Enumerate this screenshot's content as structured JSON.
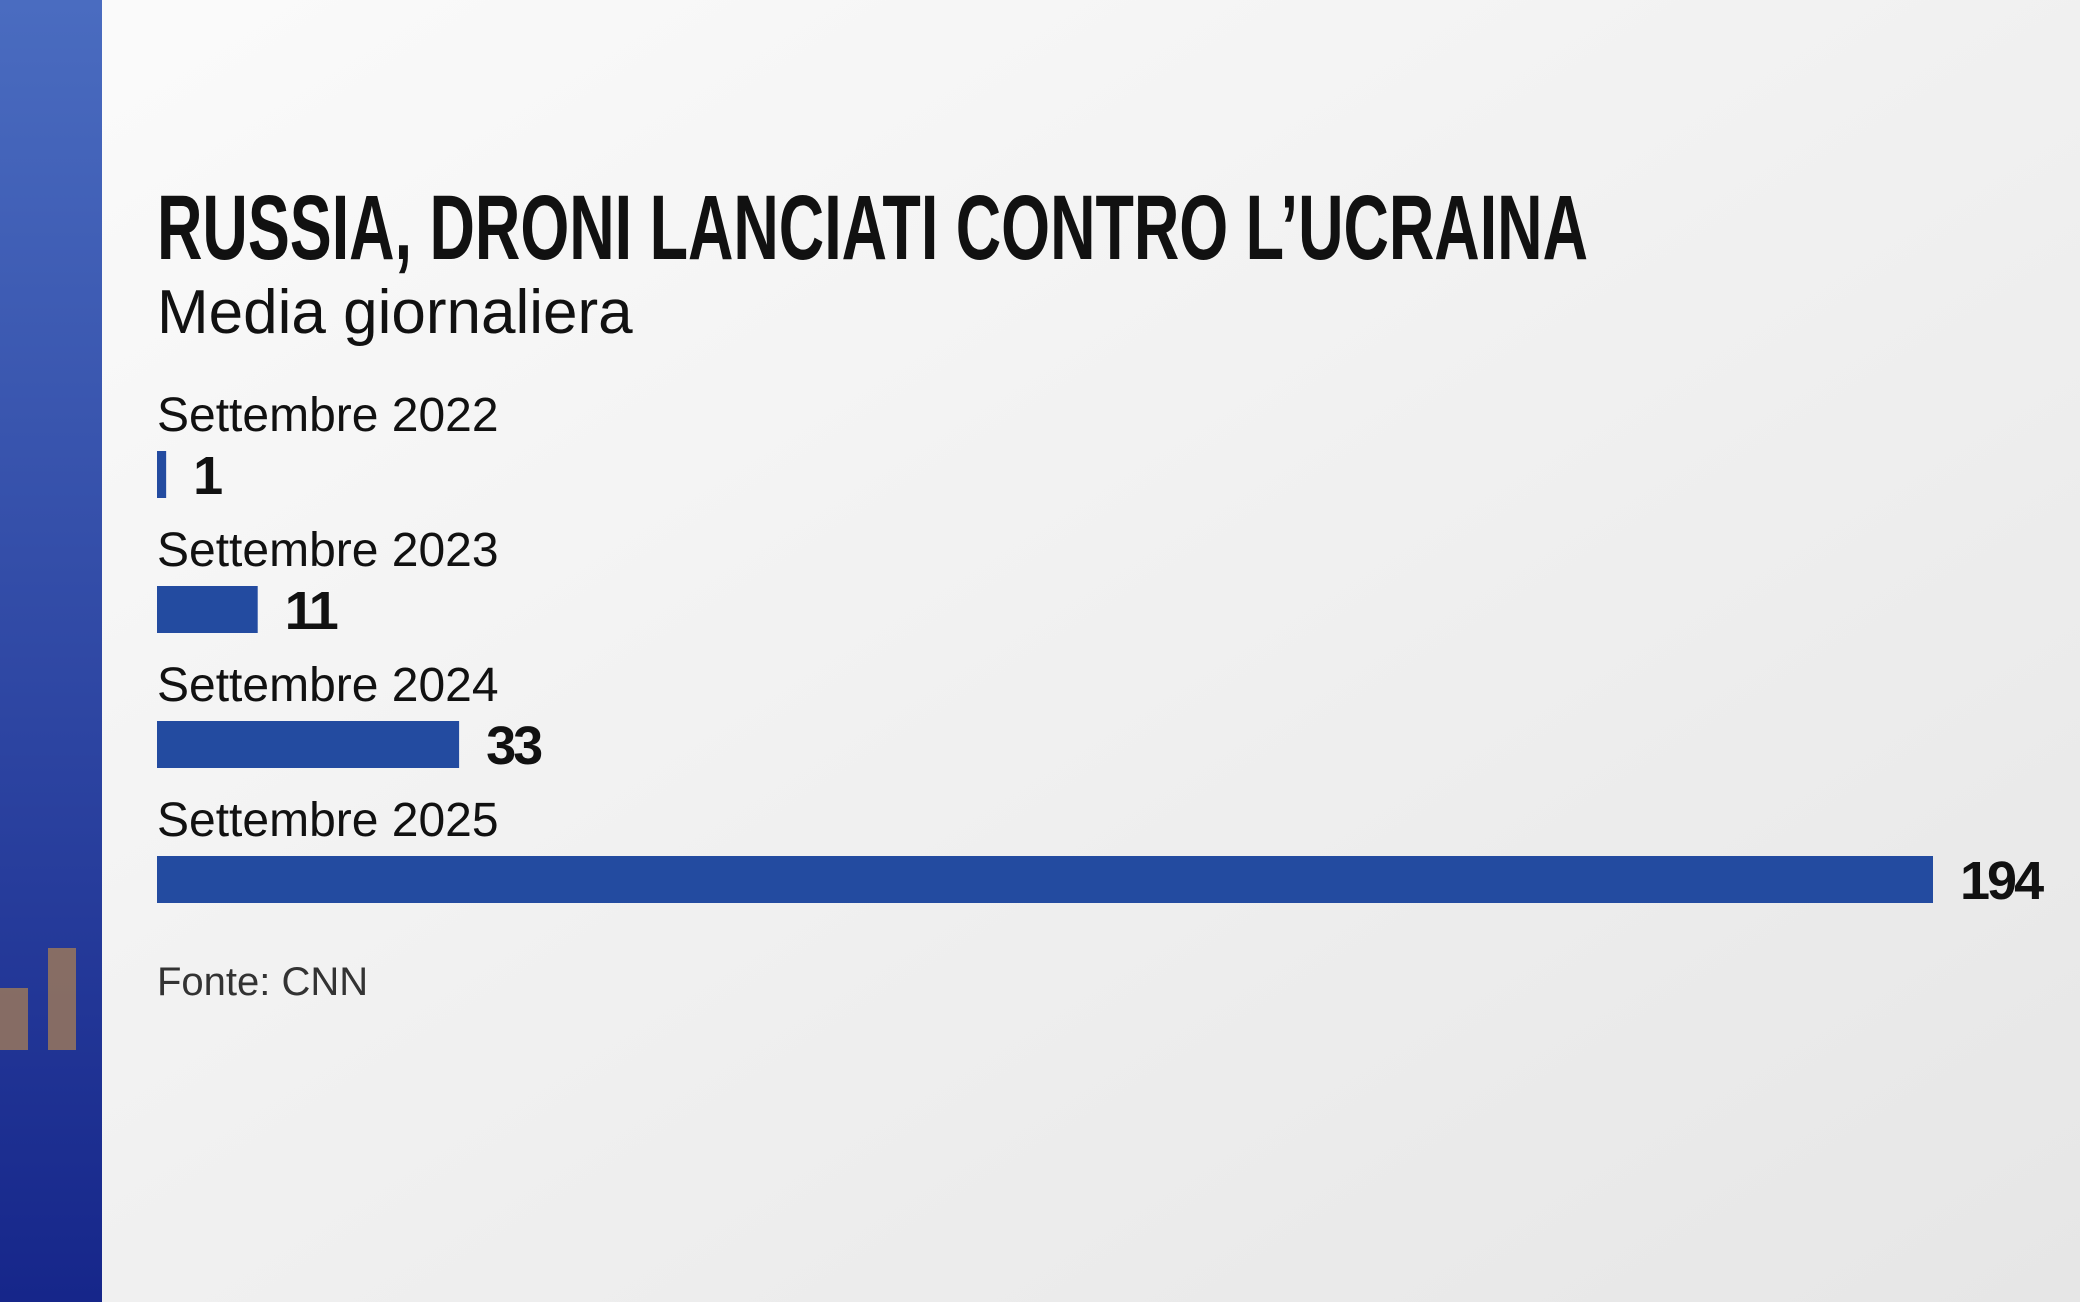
{
  "chart_data": {
    "type": "bar",
    "title": "RUSSIA, DRONI LANCIATI CONTRO L’UCRAINA",
    "subtitle": "Media giornaliera",
    "categories": [
      "Settembre 2022",
      "Settembre 2023",
      "Settembre 2024",
      "Settembre 2025"
    ],
    "values": [
      1,
      11,
      33,
      194
    ],
    "color": "#234ba0",
    "source": "Fonte: CNN"
  }
}
